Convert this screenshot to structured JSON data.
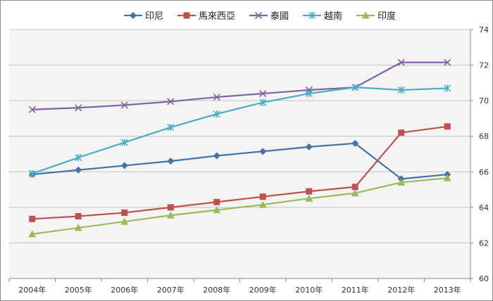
{
  "chart_data": {
    "type": "line",
    "categories": [
      "2004年",
      "2005年",
      "2006年",
      "2007年",
      "2008年",
      "2009年",
      "2010年",
      "2011年",
      "2012年",
      "2013年"
    ],
    "ylim": [
      60,
      74
    ],
    "yticks": [
      60,
      62,
      64,
      66,
      68,
      70,
      72,
      74
    ],
    "y_axis_side": "right",
    "grid": "horizontal",
    "legend_position": "top",
    "series": [
      {
        "name": "印尼",
        "color": "#4572A7",
        "marker": "diamond",
        "values": [
          65.85,
          66.1,
          66.35,
          66.6,
          66.9,
          67.15,
          67.4,
          67.6,
          65.6,
          65.85
        ]
      },
      {
        "name": "馬來西亞",
        "color": "#C0504D",
        "marker": "square",
        "values": [
          63.35,
          63.5,
          63.7,
          64.0,
          64.3,
          64.6,
          64.9,
          65.15,
          68.2,
          68.55
        ]
      },
      {
        "name": "泰國",
        "color": "#8064A2",
        "marker": "x",
        "values": [
          69.5,
          69.6,
          69.75,
          69.95,
          70.2,
          70.4,
          70.6,
          70.75,
          72.15,
          72.15
        ]
      },
      {
        "name": "越南",
        "color": "#4BACC6",
        "marker": "star",
        "values": [
          65.9,
          66.8,
          67.65,
          68.5,
          69.25,
          69.9,
          70.4,
          70.75,
          70.6,
          70.7
        ]
      },
      {
        "name": "印度",
        "color": "#9BBB59",
        "marker": "triangle",
        "values": [
          62.5,
          62.85,
          63.2,
          63.55,
          63.85,
          64.15,
          64.5,
          64.8,
          65.4,
          65.65
        ]
      }
    ]
  }
}
